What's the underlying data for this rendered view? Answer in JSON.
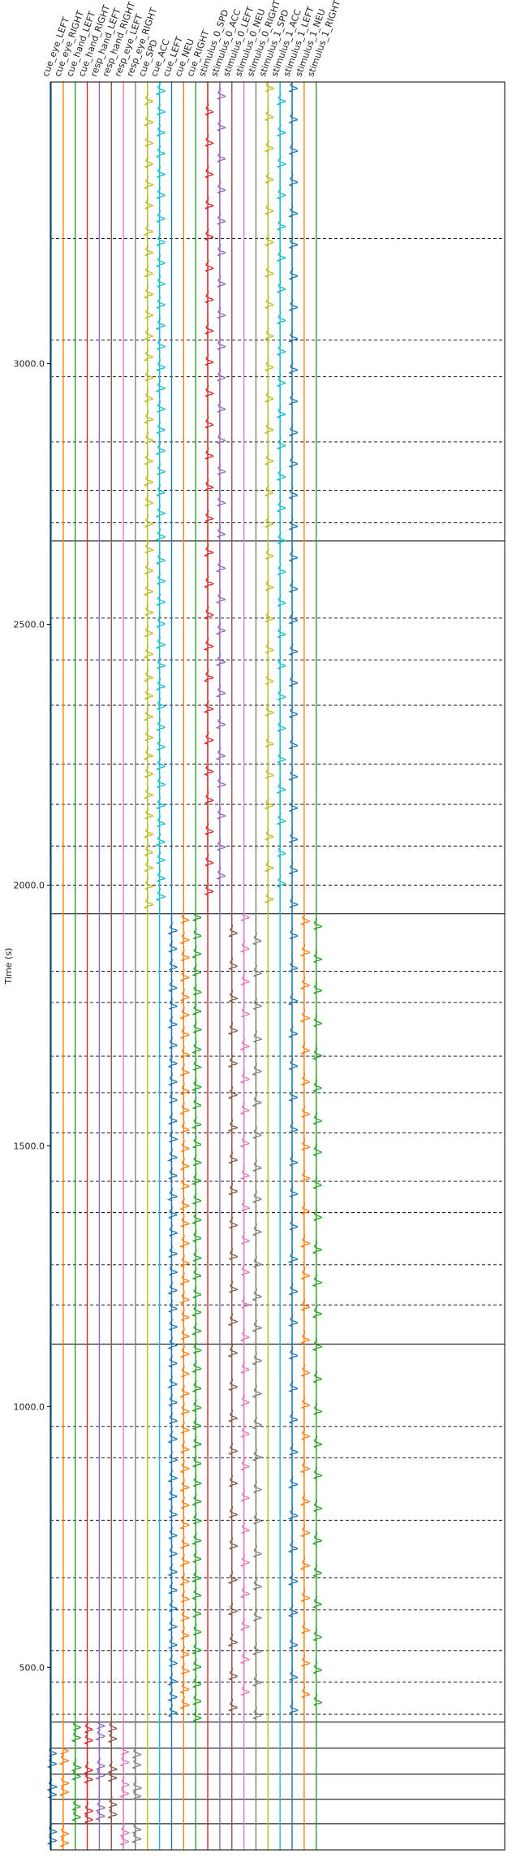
{
  "chart_data": {
    "type": "line",
    "ylabel": "Time (s)",
    "ylim": [
      3540,
      150
    ],
    "yticks": [
      500.0,
      1000.0,
      1500.0,
      2000.0,
      2500.0,
      3000.0
    ],
    "ytick_labels": [
      "500.0",
      "1000.0",
      "1500.0",
      "2000.0",
      "2500.0",
      "3000.0"
    ],
    "grid": false,
    "session_boundaries": [
      150,
      200,
      247,
      295,
      345,
      395,
      1120,
      1945,
      2660
    ],
    "run_boundaries": [
      410,
      472,
      532,
      610,
      672,
      782,
      902,
      962,
      1195,
      1272,
      1372,
      1432,
      1525,
      1602,
      1672,
      1775,
      1835,
      2000,
      2075,
      2155,
      2232,
      2345,
      2432,
      2512,
      2695,
      2757,
      2850,
      2975,
      3045,
      3240
    ],
    "series": [
      {
        "name": "cue_eye_LEFT",
        "color": "#1f77b4",
        "segments": [
          {
            "start": 150,
            "end": 345,
            "events": [
              165,
              182,
              253,
              268,
              312,
              332
            ]
          }
        ]
      },
      {
        "name": "cue_eye_RIGHT",
        "color": "#ff7f0e",
        "segments": [
          {
            "start": 150,
            "end": 345,
            "events": [
              160,
              178,
              258,
              275,
              318,
              337
            ]
          }
        ]
      },
      {
        "name": "cue_hand_LEFT",
        "color": "#2ca02c",
        "segments": [
          {
            "start": 200,
            "end": 395,
            "events": [
              210,
              230,
              288,
              305,
              362,
              382
            ]
          }
        ]
      },
      {
        "name": "cue_hand_RIGHT",
        "color": "#d62728",
        "segments": [
          {
            "start": 200,
            "end": 395,
            "events": [
              205,
              222,
              282,
              300,
              357,
              378
            ]
          }
        ]
      },
      {
        "name": "resp_hand_LEFT",
        "color": "#9467bd",
        "segments": [
          {
            "start": 200,
            "end": 395,
            "events": [
              212,
              228,
              290,
              308,
              365,
              385
            ]
          }
        ]
      },
      {
        "name": "resp_hand_RIGHT",
        "color": "#8c564b",
        "segments": [
          {
            "start": 200,
            "end": 395,
            "events": [
              215,
              234,
              285,
              302,
              360,
              380
            ]
          }
        ]
      },
      {
        "name": "resp_eye_LEFT",
        "color": "#e377c2",
        "segments": [
          {
            "start": 150,
            "end": 345,
            "events": [
              163,
              180,
              255,
              272,
              315,
              335
            ]
          }
        ]
      },
      {
        "name": "resp_eye_RIGHT",
        "color": "#7f7f7f",
        "segments": [
          {
            "start": 150,
            "end": 345,
            "events": [
              168,
              186,
              250,
              266,
              310,
              330
            ]
          }
        ]
      },
      {
        "name": "cue_SPD",
        "color": "#bcbd22",
        "segments": [
          {
            "start": 1945,
            "end": 3540,
            "events": [
              1960,
              1995,
              2030,
              2060,
              2095,
              2130,
              2170,
              2210,
              2245,
              2280,
              2320,
              2360,
              2395,
              2440,
              2480,
              2520,
              2560,
              2600,
              2640,
              2690,
              2730,
              2770,
              2810,
              2850,
              2890,
              2930,
              2970,
              3010,
              3050,
              3090,
              3130,
              3170,
              3210,
              3250,
              3300,
              3340,
              3380,
              3420,
              3460,
              3500
            ]
          }
        ]
      },
      {
        "name": "cue_ACC",
        "color": "#17becf",
        "segments": [
          {
            "start": 1945,
            "end": 3540,
            "events": [
              1975,
              2010,
              2045,
              2080,
              2115,
              2150,
              2190,
              2225,
              2262,
              2300,
              2340,
              2378,
              2418,
              2458,
              2498,
              2540,
              2580,
              2620,
              2665,
              2710,
              2750,
              2790,
              2830,
              2870,
              2910,
              2950,
              2990,
              3030,
              3070,
              3110,
              3150,
              3190,
              3230,
              3275,
              3320,
              3360,
              3400,
              3440,
              3480,
              3520
            ]
          }
        ]
      },
      {
        "name": "cue_LEFT",
        "color": "#1f77b4",
        "segments": [
          {
            "start": 395,
            "end": 1945,
            "events": [
              410,
              440,
              470,
              505,
              540,
              575,
              610,
              645,
              680,
              715,
              750,
              790,
              825,
              860,
              895,
              935,
              970,
              1005,
              1040,
              1080,
              1115,
              1150,
              1185,
              1220,
              1255,
              1290,
              1330,
              1365,
              1400,
              1440,
              1475,
              1510,
              1545,
              1585,
              1620,
              1655,
              1690,
              1730,
              1765,
              1800,
              1840,
              1875,
              1910
            ]
          }
        ]
      },
      {
        "name": "cue_NEU",
        "color": "#ff7f0e",
        "segments": [
          {
            "start": 395,
            "end": 1945,
            "events": [
              425,
              455,
              490,
              522,
              558,
              592,
              628,
              662,
              698,
              732,
              770,
              808,
              842,
              878,
              915,
              952,
              988,
              1022,
              1060,
              1098,
              1132,
              1168,
              1202,
              1238,
              1272,
              1310,
              1348,
              1382,
              1420,
              1458,
              1492,
              1528,
              1565,
              1602,
              1638,
              1672,
              1710,
              1748,
              1782,
              1820,
              1858,
              1892,
              1930
            ]
          }
        ]
      },
      {
        "name": "cue_RIGHT",
        "color": "#2ca02c",
        "segments": [
          {
            "start": 395,
            "end": 1945,
            "events": [
              400,
              432,
              465,
              498,
              530,
              565,
              600,
              635,
              668,
              705,
              740,
              778,
              815,
              850,
              888,
              925,
              960,
              995,
              1032,
              1070,
              1105,
              1142,
              1178,
              1212,
              1248,
              1282,
              1320,
              1355,
              1392,
              1430,
              1465,
              1500,
              1538,
              1575,
              1610,
              1648,
              1682,
              1720,
              1755,
              1792,
              1830,
              1865,
              1900,
              1935
            ]
          }
        ]
      },
      {
        "name": "stimulus_0_SPD",
        "color": "#d62728",
        "segments": [
          {
            "start": 1945,
            "end": 3540,
            "events": [
              1985,
              2040,
              2100,
              2160,
              2215,
              2275,
              2335,
              2395,
              2455,
              2515,
              2575,
              2635,
              2700,
              2760,
              2820,
              2880,
              2940,
              3000,
              3060,
              3120,
              3180,
              3240,
              3300,
              3360,
              3420,
              3480
            ]
          }
        ]
      },
      {
        "name": "stimulus_0_ACC",
        "color": "#9467bd",
        "segments": [
          {
            "start": 1945,
            "end": 3540,
            "events": [
              2015,
              2070,
              2130,
              2190,
              2245,
              2305,
              2365,
              2425,
              2485,
              2545,
              2605,
              2670,
              2730,
              2790,
              2850,
              2910,
              2970,
              3030,
              3090,
              3150,
              3210,
              3270,
              3330,
              3390,
              3450,
              3510
            ]
          }
        ]
      },
      {
        "name": "stimulus_0_LEFT",
        "color": "#8c564b",
        "segments": [
          {
            "start": 395,
            "end": 1945,
            "events": [
              420,
              480,
              545,
              605,
              665,
              730,
              790,
              850,
              912,
              975,
              1035,
              1100,
              1160,
              1222,
              1285,
              1345,
              1410,
              1470,
              1532,
              1595,
              1655,
              1718,
              1780,
              1842,
              1905
            ]
          }
        ]
      },
      {
        "name": "stimulus_0_NEU",
        "color": "#e377c2",
        "segments": [
          {
            "start": 395,
            "end": 1945,
            "events": [
              450,
              512,
              575,
              638,
              698,
              760,
              822,
              882,
              945,
              1005,
              1068,
              1130,
              1192,
              1255,
              1315,
              1378,
              1440,
              1502,
              1565,
              1625,
              1688,
              1750,
              1812,
              1875,
              1935
            ]
          }
        ]
      },
      {
        "name": "stimulus_0_RIGHT",
        "color": "#7f7f7f",
        "segments": [
          {
            "start": 395,
            "end": 1945,
            "events": [
              405,
              468,
              528,
              592,
              652,
              715,
              778,
              838,
              900,
              962,
              1022,
              1085,
              1148,
              1208,
              1270,
              1332,
              1395,
              1455,
              1518,
              1580,
              1640,
              1702,
              1765,
              1828,
              1890
            ]
          }
        ]
      },
      {
        "name": "stimulus_1_SPD",
        "color": "#bcbd22",
        "segments": [
          {
            "start": 1945,
            "end": 3540,
            "events": [
              1970,
              2030,
              2090,
              2150,
              2208,
              2268,
              2328,
              2388,
              2448,
              2508,
              2568,
              2628,
              2690,
              2750,
              2810,
              2870,
              2930,
              2990,
              3050,
              3110,
              3170,
              3230,
              3290,
              3350,
              3410,
              3470,
              3525
            ]
          }
        ]
      },
      {
        "name": "stimulus_1_ACC",
        "color": "#17becf",
        "segments": [
          {
            "start": 1945,
            "end": 3540,
            "events": [
              2000,
              2058,
              2120,
              2180,
              2238,
              2298,
              2358,
              2418,
              2478,
              2538,
              2598,
              2658,
              2720,
              2780,
              2840,
              2900,
              2960,
              3020,
              3080,
              3140,
              3200,
              3260,
              3320,
              3380,
              3440,
              3500
            ]
          }
        ]
      },
      {
        "name": "stimulus_1_LEFT",
        "color": "#1f77b4",
        "segments": [
          {
            "start": 395,
            "end": 3540,
            "events": [
              415,
              478,
              540,
              602,
              662,
              725,
              788,
              848,
              910,
              972,
              1032,
              1095,
              1158,
              1218,
              1280,
              1342,
              1405,
              1465,
              1528,
              1590,
              1650,
              1712,
              1775,
              1838,
              1900,
              1960,
              2025,
              2085,
              2145,
              2205,
              2265,
              2325,
              2385,
              2445,
              2505,
              2565,
              2625,
              2685,
              2745,
              2805,
              2865,
              2925,
              2985,
              3045,
              3105,
              3165,
              3225,
              3285,
              3345,
              3405,
              3465,
              3525
            ]
          }
        ]
      },
      {
        "name": "stimulus_1_NEU",
        "color": "#ff7f0e",
        "segments": [
          {
            "start": 395,
            "end": 1945,
            "events": [
              445,
              505,
              568,
              630,
              692,
              755,
              815,
              878,
              940,
              1000,
              1062,
              1125,
              1188,
              1248,
              1310,
              1372,
              1435,
              1495,
              1558,
              1620,
              1680,
              1742,
              1805,
              1868,
              1928
            ]
          }
        ]
      },
      {
        "name": "stimulus_1_RIGHT",
        "color": "#2ca02c",
        "segments": [
          {
            "start": 395,
            "end": 1945,
            "events": [
              430,
              492,
              555,
              618,
              678,
              740,
              802,
              865,
              925,
              988,
              1050,
              1112,
              1175,
              1235,
              1298,
              1360,
              1422,
              1485,
              1545,
              1608,
              1670,
              1732,
              1795,
              1855,
              1918
            ]
          }
        ]
      }
    ]
  }
}
